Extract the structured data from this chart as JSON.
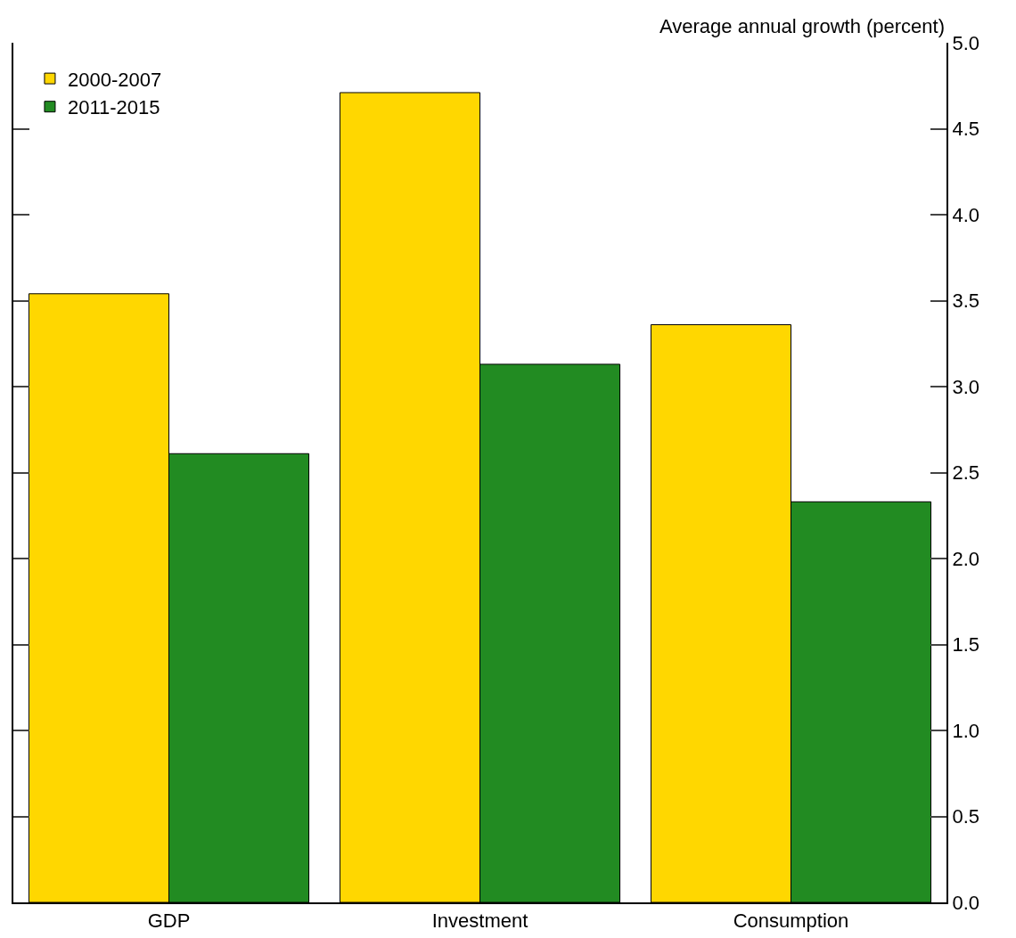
{
  "chart_data": {
    "type": "bar",
    "ylabel": "Average annual growth (percent)",
    "categories": [
      "GDP",
      "Investment",
      "Consumption"
    ],
    "series": [
      {
        "name": "2000-2007",
        "color": "#ffd700",
        "values": [
          3.54,
          4.71,
          3.36
        ]
      },
      {
        "name": "2011-2015",
        "color": "#228b22",
        "values": [
          2.61,
          3.13,
          2.33
        ]
      }
    ],
    "ylim": [
      0,
      5
    ],
    "yticks": [
      {
        "value": 0,
        "label": "0.0"
      },
      0.5,
      {
        "value": 1,
        "label": "1.0"
      },
      1.5,
      {
        "value": 2,
        "label": "2.0"
      },
      2.5,
      {
        "value": 3,
        "label": "3.0"
      },
      3.5,
      {
        "value": 4,
        "label": "4.0"
      },
      4.5,
      {
        "value": 5,
        "label": "5.0"
      }
    ],
    "grid": false,
    "legend": "top left"
  }
}
